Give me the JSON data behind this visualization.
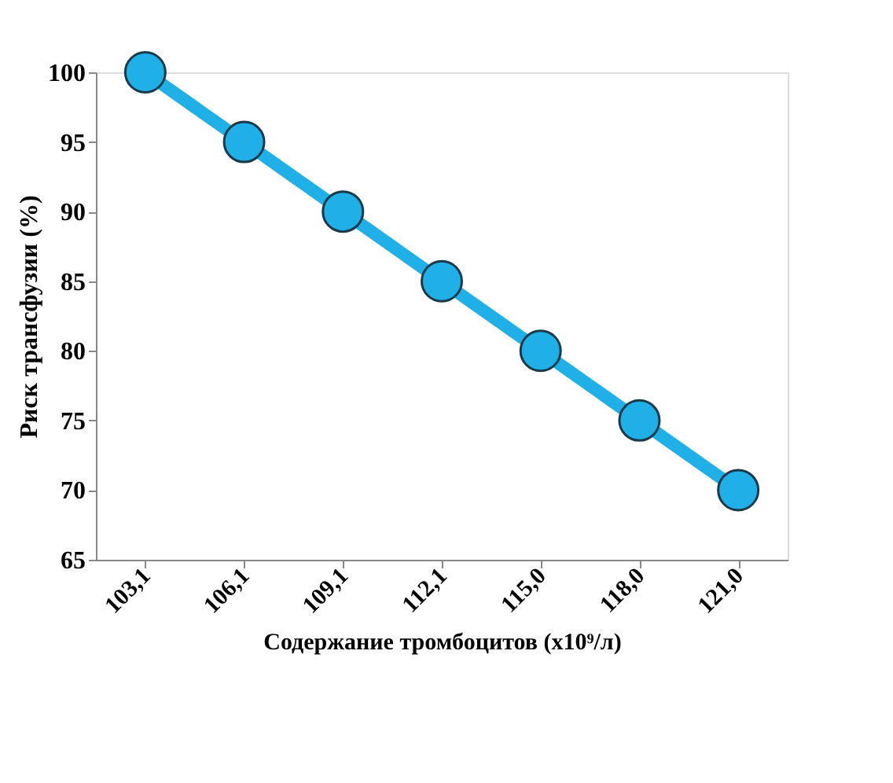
{
  "chart_data": {
    "type": "line",
    "xlabel": "Содержание тромбоцитов (x10⁹/л)",
    "ylabel": "Риск трансфузии (%)",
    "categories": [
      "103,1",
      "106,1",
      "109,1",
      "112,1",
      "115,0",
      "118,0",
      "121,0"
    ],
    "series": [
      {
        "color": "#1eb0e6",
        "values": [
          100,
          95,
          90,
          85,
          80,
          75,
          70
        ]
      }
    ],
    "ylim": [
      65,
      100
    ],
    "yticks": [
      65,
      70,
      75,
      80,
      85,
      90,
      95,
      100
    ],
    "grid": false,
    "marker": "circle",
    "line_style": "solid"
  }
}
